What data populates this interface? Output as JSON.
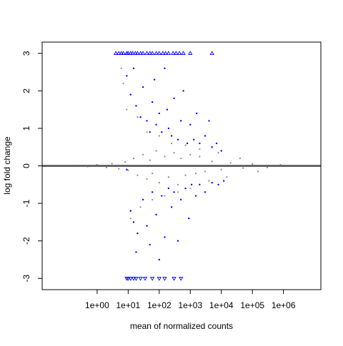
{
  "chart_data": {
    "type": "scatter",
    "kind": "MA plot",
    "title": "",
    "xlabel": "mean of normalized counts",
    "ylabel": "log fold change",
    "x_scale": "log10",
    "xlim": [
      0.017,
      16000000
    ],
    "ylim": [
      -3.3,
      3.3
    ],
    "x_ticks": [
      {
        "value": 1,
        "label": "1e+00"
      },
      {
        "value": 10,
        "label": "1e+01"
      },
      {
        "value": 100,
        "label": "1e+02"
      },
      {
        "value": 1000,
        "label": "1e+03"
      },
      {
        "value": 10000,
        "label": "1e+04"
      },
      {
        "value": 100000,
        "label": "1e+05"
      },
      {
        "value": 1000000,
        "label": "1e+06"
      }
    ],
    "y_ticks": [
      {
        "value": -3,
        "label": "-3"
      },
      {
        "value": -2,
        "label": "-2"
      },
      {
        "value": -1,
        "label": "-1"
      },
      {
        "value": 0,
        "label": "0"
      },
      {
        "value": 1,
        "label": "1"
      },
      {
        "value": 2,
        "label": "2"
      },
      {
        "value": 3,
        "label": "3"
      }
    ],
    "grid": false,
    "legend": "none",
    "reference_line": {
      "y": 0,
      "color": "#666666"
    },
    "series": [
      {
        "color": "#888888",
        "marker": "dot",
        "points": [
          [
            0.1,
            0
          ],
          [
            0.2,
            0.01
          ],
          [
            0.5,
            -0.02
          ],
          [
            1,
            0.03
          ],
          [
            2,
            -0.04
          ],
          [
            3,
            0.06
          ],
          [
            5,
            -0.08
          ],
          [
            8,
            0.1
          ],
          [
            10,
            -0.12
          ],
          [
            15,
            0.2
          ],
          [
            20,
            -0.25
          ],
          [
            30,
            0.3
          ],
          [
            40,
            -0.35
          ],
          [
            50,
            0.15
          ],
          [
            60,
            -0.2
          ],
          [
            80,
            0.4
          ],
          [
            100,
            -0.45
          ],
          [
            150,
            0.25
          ],
          [
            200,
            -0.3
          ],
          [
            300,
            0.35
          ],
          [
            400,
            -0.5
          ],
          [
            500,
            0.2
          ],
          [
            700,
            -0.25
          ],
          [
            1000,
            0.3
          ],
          [
            1500,
            -0.2
          ],
          [
            2000,
            0.25
          ],
          [
            3000,
            -0.15
          ],
          [
            5000,
            0.12
          ],
          [
            10000,
            -0.1
          ],
          [
            20000,
            0.08
          ],
          [
            50000,
            -0.06
          ],
          [
            100000,
            0.05
          ],
          [
            300000,
            -0.04
          ],
          [
            800000,
            0.03
          ],
          [
            6,
            2.6
          ],
          [
            7,
            2.2
          ],
          [
            9,
            1.5
          ],
          [
            12,
            -1.4
          ],
          [
            20,
            1.3
          ],
          [
            25,
            -1.1
          ],
          [
            40,
            0.9
          ],
          [
            60,
            -0.9
          ],
          [
            100,
            0.8
          ],
          [
            150,
            -0.8
          ],
          [
            250,
            0.6
          ],
          [
            400,
            -0.7
          ],
          [
            700,
            0.55
          ],
          [
            1000,
            -0.6
          ],
          [
            2000,
            0.45
          ],
          [
            4000,
            -0.4
          ],
          [
            8000,
            0.35
          ],
          [
            15000,
            -0.3
          ],
          [
            40000,
            0.2
          ],
          [
            150000,
            -0.15
          ]
        ]
      },
      {
        "color": "#0000ff",
        "marker": "dot",
        "points": [
          [
            9,
            2.4
          ],
          [
            12,
            1.9
          ],
          [
            15,
            2.6
          ],
          [
            18,
            1.6
          ],
          [
            25,
            1.3
          ],
          [
            30,
            2.1
          ],
          [
            40,
            1.2
          ],
          [
            50,
            0.9
          ],
          [
            60,
            1.7
          ],
          [
            70,
            2.3
          ],
          [
            80,
            1.1
          ],
          [
            100,
            1.4
          ],
          [
            120,
            0.9
          ],
          [
            150,
            2.6
          ],
          [
            180,
            1.5
          ],
          [
            200,
            1.0
          ],
          [
            250,
            0.8
          ],
          [
            300,
            1.8
          ],
          [
            400,
            0.7
          ],
          [
            500,
            1.2
          ],
          [
            600,
            2.0
          ],
          [
            800,
            0.6
          ],
          [
            1000,
            1.1
          ],
          [
            1300,
            0.7
          ],
          [
            1600,
            1.4
          ],
          [
            2000,
            0.6
          ],
          [
            3000,
            0.8
          ],
          [
            4000,
            1.2
          ],
          [
            5000,
            0.5
          ],
          [
            7000,
            0.6
          ],
          [
            10000,
            0.4
          ],
          [
            9,
            -0.1
          ],
          [
            12,
            -1.2
          ],
          [
            15,
            -1.5
          ],
          [
            18,
            -2.3
          ],
          [
            20,
            -1.8
          ],
          [
            30,
            -0.9
          ],
          [
            40,
            -1.6
          ],
          [
            50,
            -2.1
          ],
          [
            60,
            -0.7
          ],
          [
            80,
            -1.3
          ],
          [
            100,
            -2.5
          ],
          [
            120,
            -0.8
          ],
          [
            150,
            -1.9
          ],
          [
            200,
            -0.6
          ],
          [
            250,
            -1.1
          ],
          [
            300,
            -0.7
          ],
          [
            400,
            -2.0
          ],
          [
            500,
            -0.9
          ],
          [
            700,
            -0.6
          ],
          [
            900,
            -1.4
          ],
          [
            1100,
            -0.5
          ],
          [
            1500,
            -0.8
          ],
          [
            2000,
            -0.5
          ],
          [
            3000,
            -0.7
          ],
          [
            5000,
            -0.45
          ],
          [
            8000,
            -0.5
          ],
          [
            12000,
            -0.4
          ]
        ]
      },
      {
        "color": "#0000ff",
        "marker": "triangle-up",
        "points": [
          [
            4,
            3
          ],
          [
            5,
            3
          ],
          [
            6,
            3
          ],
          [
            7,
            3
          ],
          [
            9,
            3
          ],
          [
            10,
            3
          ],
          [
            12,
            3
          ],
          [
            14,
            3
          ],
          [
            17,
            3
          ],
          [
            20,
            3
          ],
          [
            25,
            3
          ],
          [
            30,
            3
          ],
          [
            40,
            3
          ],
          [
            50,
            3
          ],
          [
            60,
            3
          ],
          [
            80,
            3
          ],
          [
            100,
            3
          ],
          [
            130,
            3
          ],
          [
            160,
            3
          ],
          [
            200,
            3
          ],
          [
            280,
            3
          ],
          [
            350,
            3
          ],
          [
            450,
            3
          ],
          [
            600,
            3
          ],
          [
            1000,
            3
          ],
          [
            5000,
            3
          ]
        ]
      },
      {
        "color": "#0000ff",
        "marker": "triangle-down",
        "points": [
          [
            9,
            -3
          ],
          [
            10,
            -3
          ],
          [
            12,
            -3
          ],
          [
            15,
            -3
          ],
          [
            18,
            -3
          ],
          [
            25,
            -3
          ],
          [
            35,
            -3
          ],
          [
            60,
            -3
          ],
          [
            100,
            -3
          ],
          [
            150,
            -3
          ],
          [
            300,
            -3
          ],
          [
            500,
            -3
          ]
        ]
      }
    ]
  }
}
